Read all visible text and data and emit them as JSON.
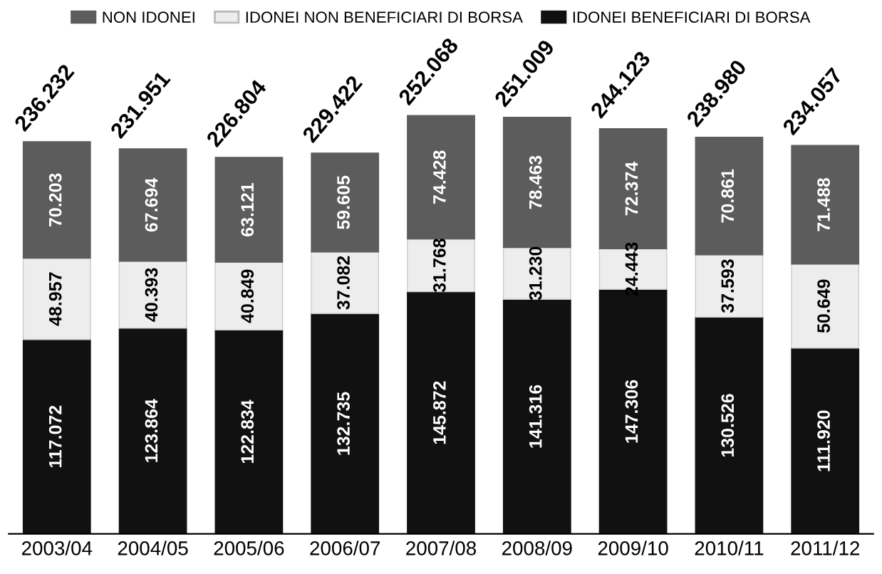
{
  "chart_data": {
    "type": "bar",
    "stacked": true,
    "legend": "top",
    "grid": false,
    "categories": [
      "2003/04",
      "2004/05",
      "2005/06",
      "2006/07",
      "2007/08",
      "2008/09",
      "2009/10",
      "2010/11",
      "2011/12"
    ],
    "series": [
      {
        "name": "IDONEI BENEFICIARI DI BORSA",
        "color": "#111111",
        "values": [
          117072,
          123864,
          122834,
          132735,
          145872,
          141316,
          147306,
          130526,
          111920
        ],
        "value_labels": [
          "117.072",
          "123.864",
          "122.834",
          "132.735",
          "145.872",
          "141.316",
          "147.306",
          "130.526",
          "111.920"
        ]
      },
      {
        "name": "IDONEI NON BENEFICIARI DI BORSA",
        "color": "#ededed",
        "values": [
          48957,
          40393,
          40849,
          37082,
          31768,
          31230,
          24443,
          37593,
          50649
        ],
        "value_labels": [
          "48.957",
          "40.393",
          "40.849",
          "37.082",
          "31.768",
          "31.230",
          "24.443",
          "37.593",
          "50.649"
        ]
      },
      {
        "name": "NON IDONEI",
        "color": "#5c5c5c",
        "values": [
          70203,
          67694,
          63121,
          59605,
          74428,
          78463,
          72374,
          70861,
          71488
        ],
        "value_labels": [
          "70.203",
          "67.694",
          "63.121",
          "59.605",
          "74.428",
          "78.463",
          "72.374",
          "70.861",
          "71.488"
        ]
      }
    ],
    "totals": [
      "236.232",
      "231.951",
      "226.804",
      "229.422",
      "252.068",
      "251.009",
      "244.123",
      "238.980",
      "234.057"
    ]
  }
}
